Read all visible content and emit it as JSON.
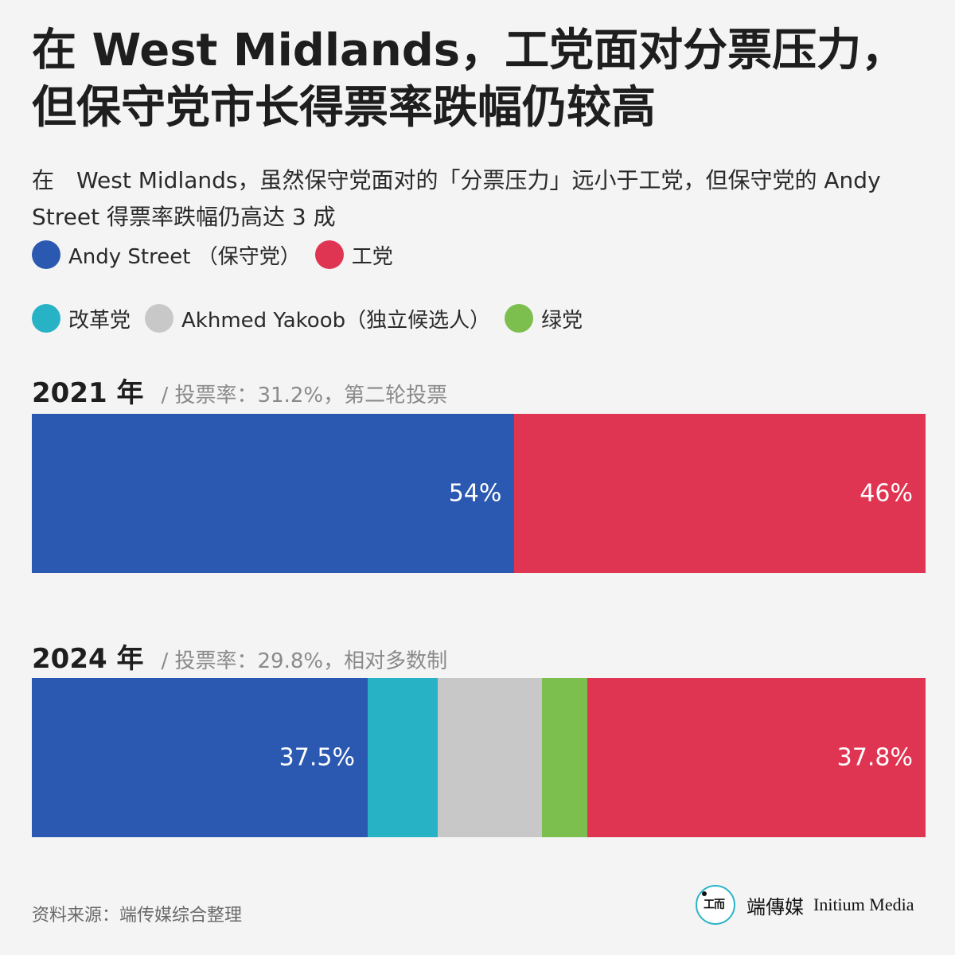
{
  "title": "在 West Midlands，工党面对分票压力，但保守党市长得票率跌幅仍较高",
  "subtitle": "在　West Midlands，虽然保守党面对的「分票压力」远小于工党，但保守党的 Andy Street 得票率跌幅仍高达 3 成",
  "legend": [
    {
      "label": "Andy Street （保守党）",
      "color": "#2b58b0"
    },
    {
      "label": "工党",
      "color": "#e03552"
    },
    {
      "label": "改革党",
      "color": "#27b2c5"
    },
    {
      "label": "Akhmed Yakoob（独立候选人）",
      "color": "#c8c8c8"
    },
    {
      "label": "绿党",
      "color": "#7cbf4e"
    }
  ],
  "chart_data": {
    "type": "bar",
    "stacked": true,
    "orientation": "horizontal",
    "series": [
      {
        "name": "Andy Street （保守党）",
        "color": "#2b58b0"
      },
      {
        "name": "改革党",
        "color": "#27b2c5"
      },
      {
        "name": "Akhmed Yakoob（独立候选人）",
        "color": "#c8c8c8"
      },
      {
        "name": "绿党",
        "color": "#7cbf4e"
      },
      {
        "name": "工党",
        "color": "#e03552"
      }
    ],
    "bars": [
      {
        "year": "2021 年",
        "note": "/ 投票率：31.2%，第二轮投票",
        "segments": [
          {
            "series": "Andy Street （保守党）",
            "value": 54,
            "label": "54%"
          },
          {
            "series": "工党",
            "value": 46,
            "label": "46%"
          }
        ]
      },
      {
        "year": "2024 年",
        "note": "/ 投票率：29.8%，相对多数制",
        "segments": [
          {
            "series": "Andy Street （保守党）",
            "value": 37.5,
            "label": "37.5%"
          },
          {
            "series": "改革党",
            "value": 7.8,
            "label": ""
          },
          {
            "series": "Akhmed Yakoob（独立候选人）",
            "value": 11.7,
            "label": ""
          },
          {
            "series": "绿党",
            "value": 5.0,
            "label": ""
          },
          {
            "series": "工党",
            "value": 37.8,
            "label": "37.8%"
          }
        ]
      }
    ]
  },
  "footer": {
    "source": "资料来源：端传媒综合整理",
    "brand_zh": "端傳媒",
    "brand_en": "Initium Media",
    "brand_mark": "工而"
  }
}
